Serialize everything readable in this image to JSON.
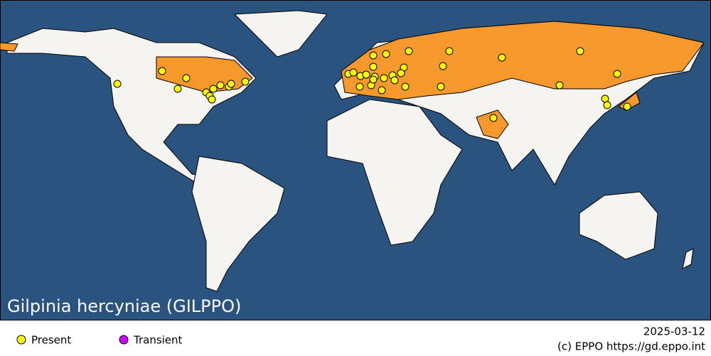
{
  "map": {
    "title": "Gilpinia hercyniae (GILPPO)"
  },
  "legend": {
    "items": [
      "Present",
      "Transient"
    ]
  },
  "footer": {
    "date": "2025-03-12",
    "credit": "(c) EPPO https://gd.eppo.int"
  }
}
